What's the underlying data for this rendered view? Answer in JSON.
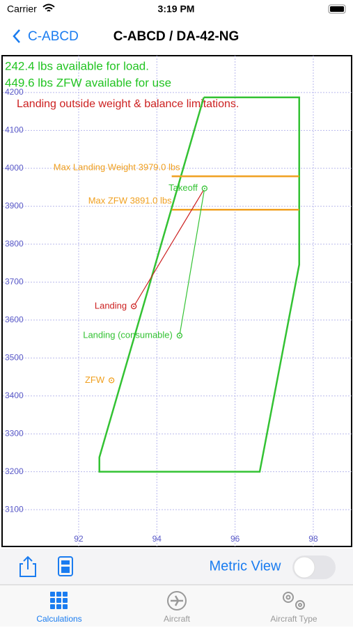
{
  "status_bar": {
    "carrier": "Carrier",
    "time": "3:19 PM"
  },
  "nav_bar": {
    "back": "C-ABCD",
    "title": "C-ABCD / DA-42-NG"
  },
  "chart_data": {
    "type": "envelope",
    "notes": [
      {
        "text": "242.4 lbs available for load.",
        "color": "#22c422"
      },
      {
        "text": "449.6 lbs ZFW available for use",
        "color": "#22c422"
      },
      {
        "text": "Landing outside weight & balance limitations.",
        "color": "#cc1f1f"
      }
    ],
    "xlim": [
      90.06,
      98.98
    ],
    "ylim": [
      3003,
      4297
    ],
    "xticks": [
      92,
      94,
      96,
      98
    ],
    "yticks": [
      3100,
      3200,
      3300,
      3400,
      3500,
      3600,
      3700,
      3800,
      3900,
      4000,
      4100,
      4200
    ],
    "grid": true,
    "envelope": {
      "color": "#33c233",
      "x": [
        95.2,
        97.64,
        97.64,
        96.63,
        92.53,
        92.53,
        95.2
      ],
      "y": [
        4187,
        4187,
        3746,
        3200,
        3200,
        3238,
        4187
      ]
    },
    "limits": [
      {
        "label": "Max Landing Weight 3979.0 lbs",
        "value": 3979,
        "x": [
          94.38,
          97.64
        ],
        "color": "#f0a020"
      },
      {
        "label": "Max ZFW 3891.0 lbs",
        "value": 3891,
        "x": [
          94.38,
          97.64
        ],
        "color": "#f0a020"
      }
    ],
    "points": [
      {
        "label": "Takeoff",
        "x": 95.22,
        "y": 3947,
        "color": "#33c233"
      },
      {
        "label": "Landing",
        "x": 93.41,
        "y": 3636,
        "color": "#cc1f1f"
      },
      {
        "label": "Landing (consumable)",
        "x": 94.58,
        "y": 3559,
        "color": "#33c233"
      },
      {
        "label": "ZFW",
        "x": 92.84,
        "y": 3441,
        "color": "#f0a020"
      }
    ]
  },
  "toolbar": {
    "metric_view": "Metric View"
  },
  "tab_bar": {
    "tabs": [
      "Calculations",
      "Aircraft",
      "Aircraft Type"
    ]
  }
}
